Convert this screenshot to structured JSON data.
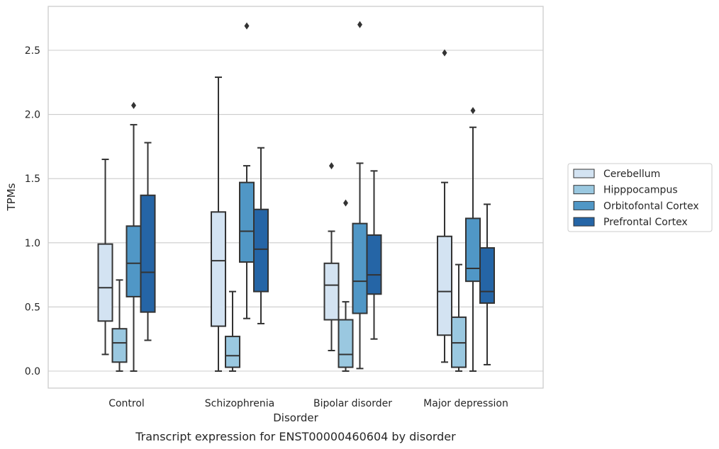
{
  "chart_data": {
    "type": "box",
    "caption": "Transcript expression for ENST00000460604 by disorder",
    "xlabel": "Disorder",
    "ylabel": "TPMs",
    "ylim": [
      -0.13,
      2.85
    ],
    "yticks": [
      "0.0",
      "0.5",
      "1.0",
      "1.5",
      "2.0",
      "2.5"
    ],
    "grid": "horizontal",
    "legend_position": "right",
    "categories": [
      "Control",
      "Schizophrenia",
      "Bipolar disorder",
      "Major depression"
    ],
    "series": [
      {
        "name": "Cerebellum",
        "color": "#d3e3f2",
        "boxes": [
          {
            "min": 0.13,
            "q1": 0.39,
            "median": 0.65,
            "q3": 0.99,
            "max": 1.65,
            "outliers": []
          },
          {
            "min": 0.0,
            "q1": 0.35,
            "median": 0.86,
            "q3": 1.24,
            "max": 2.29,
            "outliers": []
          },
          {
            "min": 0.16,
            "q1": 0.4,
            "median": 0.67,
            "q3": 0.84,
            "max": 1.09,
            "outliers": [
              1.6
            ]
          },
          {
            "min": 0.07,
            "q1": 0.28,
            "median": 0.62,
            "q3": 1.05,
            "max": 1.47,
            "outliers": [
              2.48
            ]
          }
        ]
      },
      {
        "name": "Hipppocampus",
        "color": "#9ac8e0",
        "boxes": [
          {
            "min": 0.0,
            "q1": 0.07,
            "median": 0.22,
            "q3": 0.33,
            "max": 0.71,
            "outliers": []
          },
          {
            "min": 0.0,
            "q1": 0.03,
            "median": 0.12,
            "q3": 0.27,
            "max": 0.62,
            "outliers": []
          },
          {
            "min": 0.0,
            "q1": 0.03,
            "median": 0.13,
            "q3": 0.4,
            "max": 0.54,
            "outliers": [
              1.31
            ]
          },
          {
            "min": 0.0,
            "q1": 0.03,
            "median": 0.22,
            "q3": 0.42,
            "max": 0.83,
            "outliers": []
          }
        ]
      },
      {
        "name": "Orbitofontal Cortex",
        "color": "#5097c6",
        "boxes": [
          {
            "min": 0.0,
            "q1": 0.58,
            "median": 0.84,
            "q3": 1.13,
            "max": 1.92,
            "outliers": [
              2.07
            ]
          },
          {
            "min": 0.41,
            "q1": 0.85,
            "median": 1.09,
            "q3": 1.47,
            "max": 1.6,
            "outliers": [
              2.69
            ]
          },
          {
            "min": 0.02,
            "q1": 0.45,
            "median": 0.7,
            "q3": 1.15,
            "max": 1.62,
            "outliers": [
              2.7
            ]
          },
          {
            "min": 0.0,
            "q1": 0.7,
            "median": 0.8,
            "q3": 1.19,
            "max": 1.9,
            "outliers": [
              2.03
            ]
          }
        ]
      },
      {
        "name": "Prefrontal Cortex",
        "color": "#2565a6",
        "boxes": [
          {
            "min": 0.24,
            "q1": 0.46,
            "median": 0.77,
            "q3": 1.37,
            "max": 1.78,
            "outliers": []
          },
          {
            "min": 0.37,
            "q1": 0.62,
            "median": 0.95,
            "q3": 1.26,
            "max": 1.74,
            "outliers": []
          },
          {
            "min": 0.25,
            "q1": 0.6,
            "median": 0.75,
            "q3": 1.06,
            "max": 1.56,
            "outliers": []
          },
          {
            "min": 0.05,
            "q1": 0.53,
            "median": 0.62,
            "q3": 0.96,
            "max": 1.3,
            "outliers": []
          }
        ]
      }
    ]
  }
}
